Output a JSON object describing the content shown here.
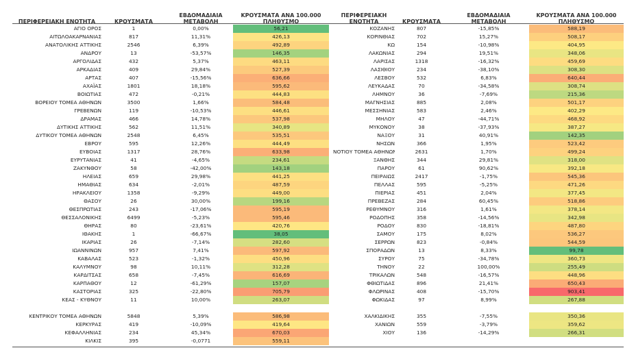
{
  "headers": {
    "region": "ΠΕΡΙΦΕΡΕΙΑΚΗ ΕΝΟΤΗΤΑ",
    "cases": "ΚΡΟΥΣΜΑΤΑ",
    "weekly": "ΕΒΔΟΜΑΔΙΑΙΑ ΜΕΤΑΒΟΛΗ",
    "per100k": "ΚΡΟΥΣΜΑΤΑ ΑΝΑ 100.000 ΠΛΗΘΥΣΜΟ"
  },
  "left_rows": [
    {
      "name": "ΑΓΙΟ ΟΡΟΣ",
      "cases": "1",
      "change": "0,00%",
      "rate": "56,21",
      "color": "#63be7b"
    },
    {
      "name": "ΑΙΤΩΛΟΑΚΑΡΝΑΝΙΑΣ",
      "cases": "817",
      "change": "11,31%",
      "rate": "426,13",
      "color": "#fde484"
    },
    {
      "name": "ΑΝΑΤΟΛΙΚΗΣ ΑΤΤΙΚΗΣ",
      "cases": "2546",
      "change": "6,39%",
      "rate": "492,89",
      "color": "#fdd47f"
    },
    {
      "name": "ΑΝΔΡΟΥ",
      "cases": "13",
      "change": "-53,57%",
      "rate": "146,35",
      "color": "#a3d27f"
    },
    {
      "name": "ΑΡΓΟΛΙΔΑΣ",
      "cases": "432",
      "change": "5,37%",
      "rate": "463,11",
      "color": "#fddb81"
    },
    {
      "name": "ΑΡΚΑΔΙΑΣ",
      "cases": "409",
      "change": "29,84%",
      "rate": "527,39",
      "color": "#fcca7d"
    },
    {
      "name": "ΑΡΤΑΣ",
      "cases": "407",
      "change": "-15,56%",
      "rate": "636,66",
      "color": "#fbaf77"
    },
    {
      "name": "ΑΧΑΪΑΣ",
      "cases": "1801",
      "change": "18,18%",
      "rate": "595,62",
      "color": "#fbba7a"
    },
    {
      "name": "ΒΟΙΩΤΙΑΣ",
      "cases": "472",
      "change": "-0,21%",
      "rate": "444,83",
      "color": "#fde082"
    },
    {
      "name": "ΒΟΡΕΙΟΥ ΤΟΜΕΑ ΑΘΗΝΩΝ",
      "cases": "3500",
      "change": "1,66%",
      "rate": "584,48",
      "color": "#fbbd7a"
    },
    {
      "name": "ΓΡΕΒΕΝΩΝ",
      "cases": "119",
      "change": "-10,53%",
      "rate": "446,61",
      "color": "#fddf82"
    },
    {
      "name": "ΔΡΑΜΑΣ",
      "cases": "466",
      "change": "14,78%",
      "rate": "537,98",
      "color": "#fcc87d"
    },
    {
      "name": "ΔΥΤΙΚΗΣ ΑΤΤΙΚΗΣ",
      "cases": "562",
      "change": "11,51%",
      "rate": "340,89",
      "color": "#e7e583"
    },
    {
      "name": "ΔΥΤΙΚΟΥ ΤΟΜΕΑ ΑΘΗΝΩΝ",
      "cases": "2548",
      "change": "6,45%",
      "rate": "535,51",
      "color": "#fcc87d"
    },
    {
      "name": "ΕΒΡΟΥ",
      "cases": "595",
      "change": "12,26%",
      "rate": "444,49",
      "color": "#fde082"
    },
    {
      "name": "ΕΥΒΟΙΑΣ",
      "cases": "1317",
      "change": "28,76%",
      "rate": "633,98",
      "color": "#fbaf77"
    },
    {
      "name": "ΕΥΡΥΤΑΝΙΑΣ",
      "cases": "41",
      "change": "-4,65%",
      "rate": "234,61",
      "color": "#c5db81"
    },
    {
      "name": "ΖΑΚΥΝΘΟΥ",
      "cases": "58",
      "change": "-42,00%",
      "rate": "143,18",
      "color": "#a2d17f"
    },
    {
      "name": "ΗΛΕΙΑΣ",
      "cases": "659",
      "change": "29,98%",
      "rate": "441,25",
      "color": "#fde082"
    },
    {
      "name": "ΗΜΑΘΙΑΣ",
      "cases": "634",
      "change": "-2,01%",
      "rate": "487,59",
      "color": "#fdd57f"
    },
    {
      "name": "ΗΡΑΚΛΕΙΟΥ",
      "cases": "1358",
      "change": "-9,29%",
      "rate": "449,00",
      "color": "#fdde82"
    },
    {
      "name": "ΘΑΣΟΥ",
      "cases": "26",
      "change": "30,00%",
      "rate": "199,16",
      "color": "#b8d780"
    },
    {
      "name": "ΘΕΣΠΡΩΤΙΑΣ",
      "cases": "243",
      "change": "-17,06%",
      "rate": "595,19",
      "color": "#fbba7a"
    },
    {
      "name": "ΘΕΣΣΑΛΟΝΙΚΗΣ",
      "cases": "6499",
      "change": "-5,23%",
      "rate": "595,46",
      "color": "#fbba7a"
    },
    {
      "name": "ΘΗΡΑΣ",
      "cases": "80",
      "change": "-23,61%",
      "rate": "420,76",
      "color": "#fee684"
    },
    {
      "name": "ΙΘΑΚΗΣ",
      "cases": "1",
      "change": "-66,67%",
      "rate": "38,05",
      "color": "#63be7b"
    },
    {
      "name": "ΙΚΑΡΙΑΣ",
      "cases": "26",
      "change": "-7,14%",
      "rate": "282,60",
      "color": "#d6df82"
    },
    {
      "name": "ΙΩΑΝΝΙΝΩΝ",
      "cases": "957",
      "change": "7,41%",
      "rate": "597,92",
      "color": "#fbba7a"
    },
    {
      "name": "ΚΑΒΑΛΑΣ",
      "cases": "523",
      "change": "-1,32%",
      "rate": "450,96",
      "color": "#fdde82"
    },
    {
      "name": "ΚΑΛΥΜΝΟΥ",
      "cases": "98",
      "change": "10,11%",
      "rate": "312,28",
      "color": "#dfe283"
    },
    {
      "name": "ΚΑΡΔΙΤΣΑΣ",
      "cases": "658",
      "change": "-7,45%",
      "rate": "616,69",
      "color": "#fbb478"
    },
    {
      "name": "ΚΑΡΠΑΘΟΥ",
      "cases": "12",
      "change": "-61,29%",
      "rate": "157,07",
      "color": "#a7d37f"
    },
    {
      "name": "ΚΑΣΤΟΡΙΑΣ",
      "cases": "325",
      "change": "-22,80%",
      "rate": "705,79",
      "color": "#fa9d73"
    },
    {
      "name": "ΚΕΑΣ - ΚΥΘΝΟΥ",
      "cases": "11",
      "change": "10,00%",
      "rate": "263,07",
      "color": "#d0dd81"
    },
    {
      "name": "",
      "cases": "",
      "change": "",
      "rate": "",
      "color": ""
    },
    {
      "name": "ΚΕΝΤΡΙΚΟΥ ΤΟΜΕΑ ΑΘΗΝΩΝ",
      "cases": "5848",
      "change": "5,39%",
      "rate": "586,98",
      "color": "#fbbc7a"
    },
    {
      "name": "ΚΕΡΚΥΡΑΣ",
      "cases": "419",
      "change": "-10,09%",
      "rate": "419,64",
      "color": "#fee684"
    },
    {
      "name": "ΚΕΦΑΛΛΗΝΙΑΣ",
      "cases": "234",
      "change": "45,34%",
      "rate": "670,03",
      "color": "#fba675"
    },
    {
      "name": "ΚΙΛΚΙΣ",
      "cases": "395",
      "change": "-0,0771",
      "rate": "559,11",
      "color": "#fcc37c"
    }
  ],
  "right_rows": [
    {
      "name": "ΚΟΖΑΝΗΣ",
      "cases": "807",
      "change": "-15,85%",
      "rate": "588,19",
      "color": "#fbbc7a"
    },
    {
      "name": "ΚΟΡΙΝΘΙΑΣ",
      "cases": "702",
      "change": "15,27%",
      "rate": "508,17",
      "color": "#fdd07e"
    },
    {
      "name": "ΚΩ",
      "cases": "154",
      "change": "-10,98%",
      "rate": "404,95",
      "color": "#fde985"
    },
    {
      "name": "ΛΑΚΩΝΙΑΣ",
      "cases": "294",
      "change": "19,51%",
      "rate": "348,06",
      "color": "#e9e583"
    },
    {
      "name": "ΛΑΡΙΣΑΣ",
      "cases": "1318",
      "change": "-16,32%",
      "rate": "459,69",
      "color": "#fddc81"
    },
    {
      "name": "ΛΑΣΙΘΙΟΥ",
      "cases": "234",
      "change": "-38,10%",
      "rate": "308,30",
      "color": "#dde183"
    },
    {
      "name": "ΛΕΣΒΟΥ",
      "cases": "532",
      "change": "6,83%",
      "rate": "640,44",
      "color": "#fbae77"
    },
    {
      "name": "ΛΕΥΚΑΔΑΣ",
      "cases": "70",
      "change": "-34,58%",
      "rate": "308,74",
      "color": "#dde183"
    },
    {
      "name": "ΛΗΜΝΟΥ",
      "cases": "36",
      "change": "-7,69%",
      "rate": "215,36",
      "color": "#bdd981"
    },
    {
      "name": "ΜΑΓΝΗΣΙΑΣ",
      "cases": "885",
      "change": "2,08%",
      "rate": "501,17",
      "color": "#fdd27f"
    },
    {
      "name": "ΜΕΣΣΗΝΙΑΣ",
      "cases": "583",
      "change": "2,46%",
      "rate": "402,29",
      "color": "#fde985"
    },
    {
      "name": "ΜΗΛΟΥ",
      "cases": "47",
      "change": "-44,71%",
      "rate": "468,92",
      "color": "#fdda81"
    },
    {
      "name": "ΜΥΚΟΝΟΥ",
      "cases": "38",
      "change": "-37,93%",
      "rate": "387,27",
      "color": "#f6e884"
    },
    {
      "name": "ΝΑΞΟΥ",
      "cases": "31",
      "change": "40,91%",
      "rate": "142,35",
      "color": "#a2d17f"
    },
    {
      "name": "ΝΗΣΩΝ",
      "cases": "366",
      "change": "1,95%",
      "rate": "523,42",
      "color": "#fdcb7e"
    },
    {
      "name": "ΝΟΤΙΟΥ ΤΟΜΕΑ ΑΘΗΝΩΝ",
      "cases": "2631",
      "change": "1,70%",
      "rate": "499,24",
      "color": "#fdd27f"
    },
    {
      "name": "ΞΑΝΘΗΣ",
      "cases": "344",
      "change": "29,81%",
      "rate": "318,00",
      "color": "#e0e283"
    },
    {
      "name": "ΠΑΡΟΥ",
      "cases": "61",
      "change": "90,62%",
      "rate": "392,18",
      "color": "#f8e884"
    },
    {
      "name": "ΠΕΙΡΑΙΩΣ",
      "cases": "2417",
      "change": "-1,75%",
      "rate": "545,36",
      "color": "#fcc67c"
    },
    {
      "name": "ΠΕΛΛΑΣ",
      "cases": "595",
      "change": "-5,25%",
      "rate": "471,26",
      "color": "#fdd981"
    },
    {
      "name": "ΠΙΕΡΙΑΣ",
      "cases": "451",
      "change": "2,04%",
      "rate": "377,45",
      "color": "#f3e784"
    },
    {
      "name": "ΠΡΕΒΕΖΑΣ",
      "cases": "284",
      "change": "60,45%",
      "rate": "518,86",
      "color": "#fdcc7e"
    },
    {
      "name": "ΡΕΘΥΜΝΟΥ",
      "cases": "316",
      "change": "1,61%",
      "rate": "378,14",
      "color": "#f3e784"
    },
    {
      "name": "ΡΟΔΟΠΗΣ",
      "cases": "358",
      "change": "-14,56%",
      "rate": "342,98",
      "color": "#e8e583"
    },
    {
      "name": "ΡΟΔΟΥ",
      "cases": "830",
      "change": "-18,81%",
      "rate": "487,80",
      "color": "#fdd57f"
    },
    {
      "name": "ΣΑΜΟΥ",
      "cases": "175",
      "change": "8,02%",
      "rate": "536,27",
      "color": "#fcc87d"
    },
    {
      "name": "ΣΕΡΡΩΝ",
      "cases": "823",
      "change": "-0,84%",
      "rate": "544,59",
      "color": "#fcc67c"
    },
    {
      "name": "ΣΠΟΡΑΔΩΝ",
      "cases": "13",
      "change": "8,33%",
      "rate": "99,78",
      "color": "#63be7b"
    },
    {
      "name": "ΣΥΡΟΥ",
      "cases": "75",
      "change": "-34,78%",
      "rate": "360,73",
      "color": "#eee683"
    },
    {
      "name": "ΤΗΝΟΥ",
      "cases": "22",
      "change": "100,00%",
      "rate": "255,49",
      "color": "#cedd81"
    },
    {
      "name": "ΤΡΙΚΑΛΩΝ",
      "cases": "548",
      "change": "-16,57%",
      "rate": "448,96",
      "color": "#fdde82"
    },
    {
      "name": "ΦΘΙΩΤΙΔΑΣ",
      "cases": "896",
      "change": "21,41%",
      "rate": "650,43",
      "color": "#fbab76"
    },
    {
      "name": "ΦΛΩΡΙΝΑΣ",
      "cases": "408",
      "change": "-15,70%",
      "rate": "903,41",
      "color": "#f8696b"
    },
    {
      "name": "ΦΩΚΙΔΑΣ",
      "cases": "97",
      "change": "8,99%",
      "rate": "267,88",
      "color": "#d1de81"
    },
    {
      "name": "",
      "cases": "",
      "change": "",
      "rate": "",
      "color": ""
    },
    {
      "name": "ΧΑΛΚΙΔΙΚΗΣ",
      "cases": "355",
      "change": "-7,55%",
      "rate": "350,36",
      "color": "#e9e583"
    },
    {
      "name": "ΧΑΝΙΩΝ",
      "cases": "559",
      "change": "-3,79%",
      "rate": "359,62",
      "color": "#ede683"
    },
    {
      "name": "ΧΙΟΥ",
      "cases": "136",
      "change": "-14,29%",
      "rate": "266,31",
      "color": "#d1de81"
    }
  ]
}
